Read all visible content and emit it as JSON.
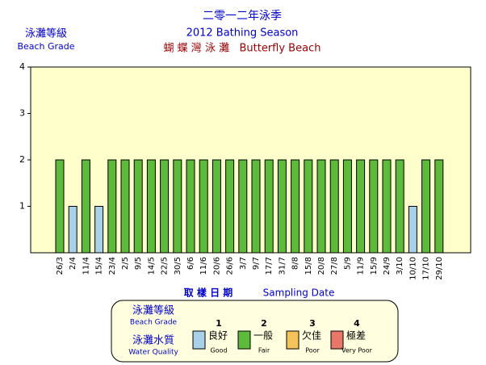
{
  "chart_data": {
    "type": "bar",
    "title": "二零一二年泳季",
    "subtitle": "2012 Bathing Season",
    "beach": "蝴 蝶 灣 泳 灘   Butterfly Beach",
    "y_label": "泳灘等級",
    "y_label_en": "Beach Grade",
    "x_label": "取 樣 日 期",
    "x_label_en": "Sampling Date",
    "categories": [
      "26/3",
      "2/4",
      "11/4",
      "15/4",
      "23/4",
      "2/5",
      "9/5",
      "14/5",
      "22/5",
      "30/5",
      "6/6",
      "11/6",
      "20/6",
      "26/6",
      "3/7",
      "9/7",
      "17/7",
      "31/7",
      "8/8",
      "15/8",
      "20/8",
      "27/8",
      "5/9",
      "11/9",
      "15/9",
      "24/9",
      "3/10",
      "10/10",
      "17/10",
      "29/10"
    ],
    "values": [
      2,
      1,
      2,
      1,
      2,
      2,
      2,
      2,
      2,
      2,
      2,
      2,
      2,
      2,
      2,
      2,
      2,
      2,
      2,
      2,
      2,
      2,
      2,
      2,
      2,
      2,
      2,
      1,
      2,
      2
    ],
    "ylim": [
      0,
      4
    ],
    "yticks": [
      1,
      2,
      3,
      4
    ],
    "legend": {
      "grade_label": "泳灘等級",
      "grade_label_en": "Beach Grade",
      "quality_label": "泳灘水質",
      "quality_label_en": "Water Quality",
      "items": [
        {
          "grade": 1,
          "label": "良好",
          "label_en": "Good",
          "color": "#a8d0e6"
        },
        {
          "grade": 2,
          "label": "一般",
          "label_en": "Fair",
          "color": "#5dba3b"
        },
        {
          "grade": 3,
          "label": "欠佳",
          "label_en": "Poor",
          "color": "#f4c35a"
        },
        {
          "grade": 4,
          "label": "極差",
          "label_en": "Very Poor",
          "color": "#e8776a"
        }
      ]
    }
  }
}
